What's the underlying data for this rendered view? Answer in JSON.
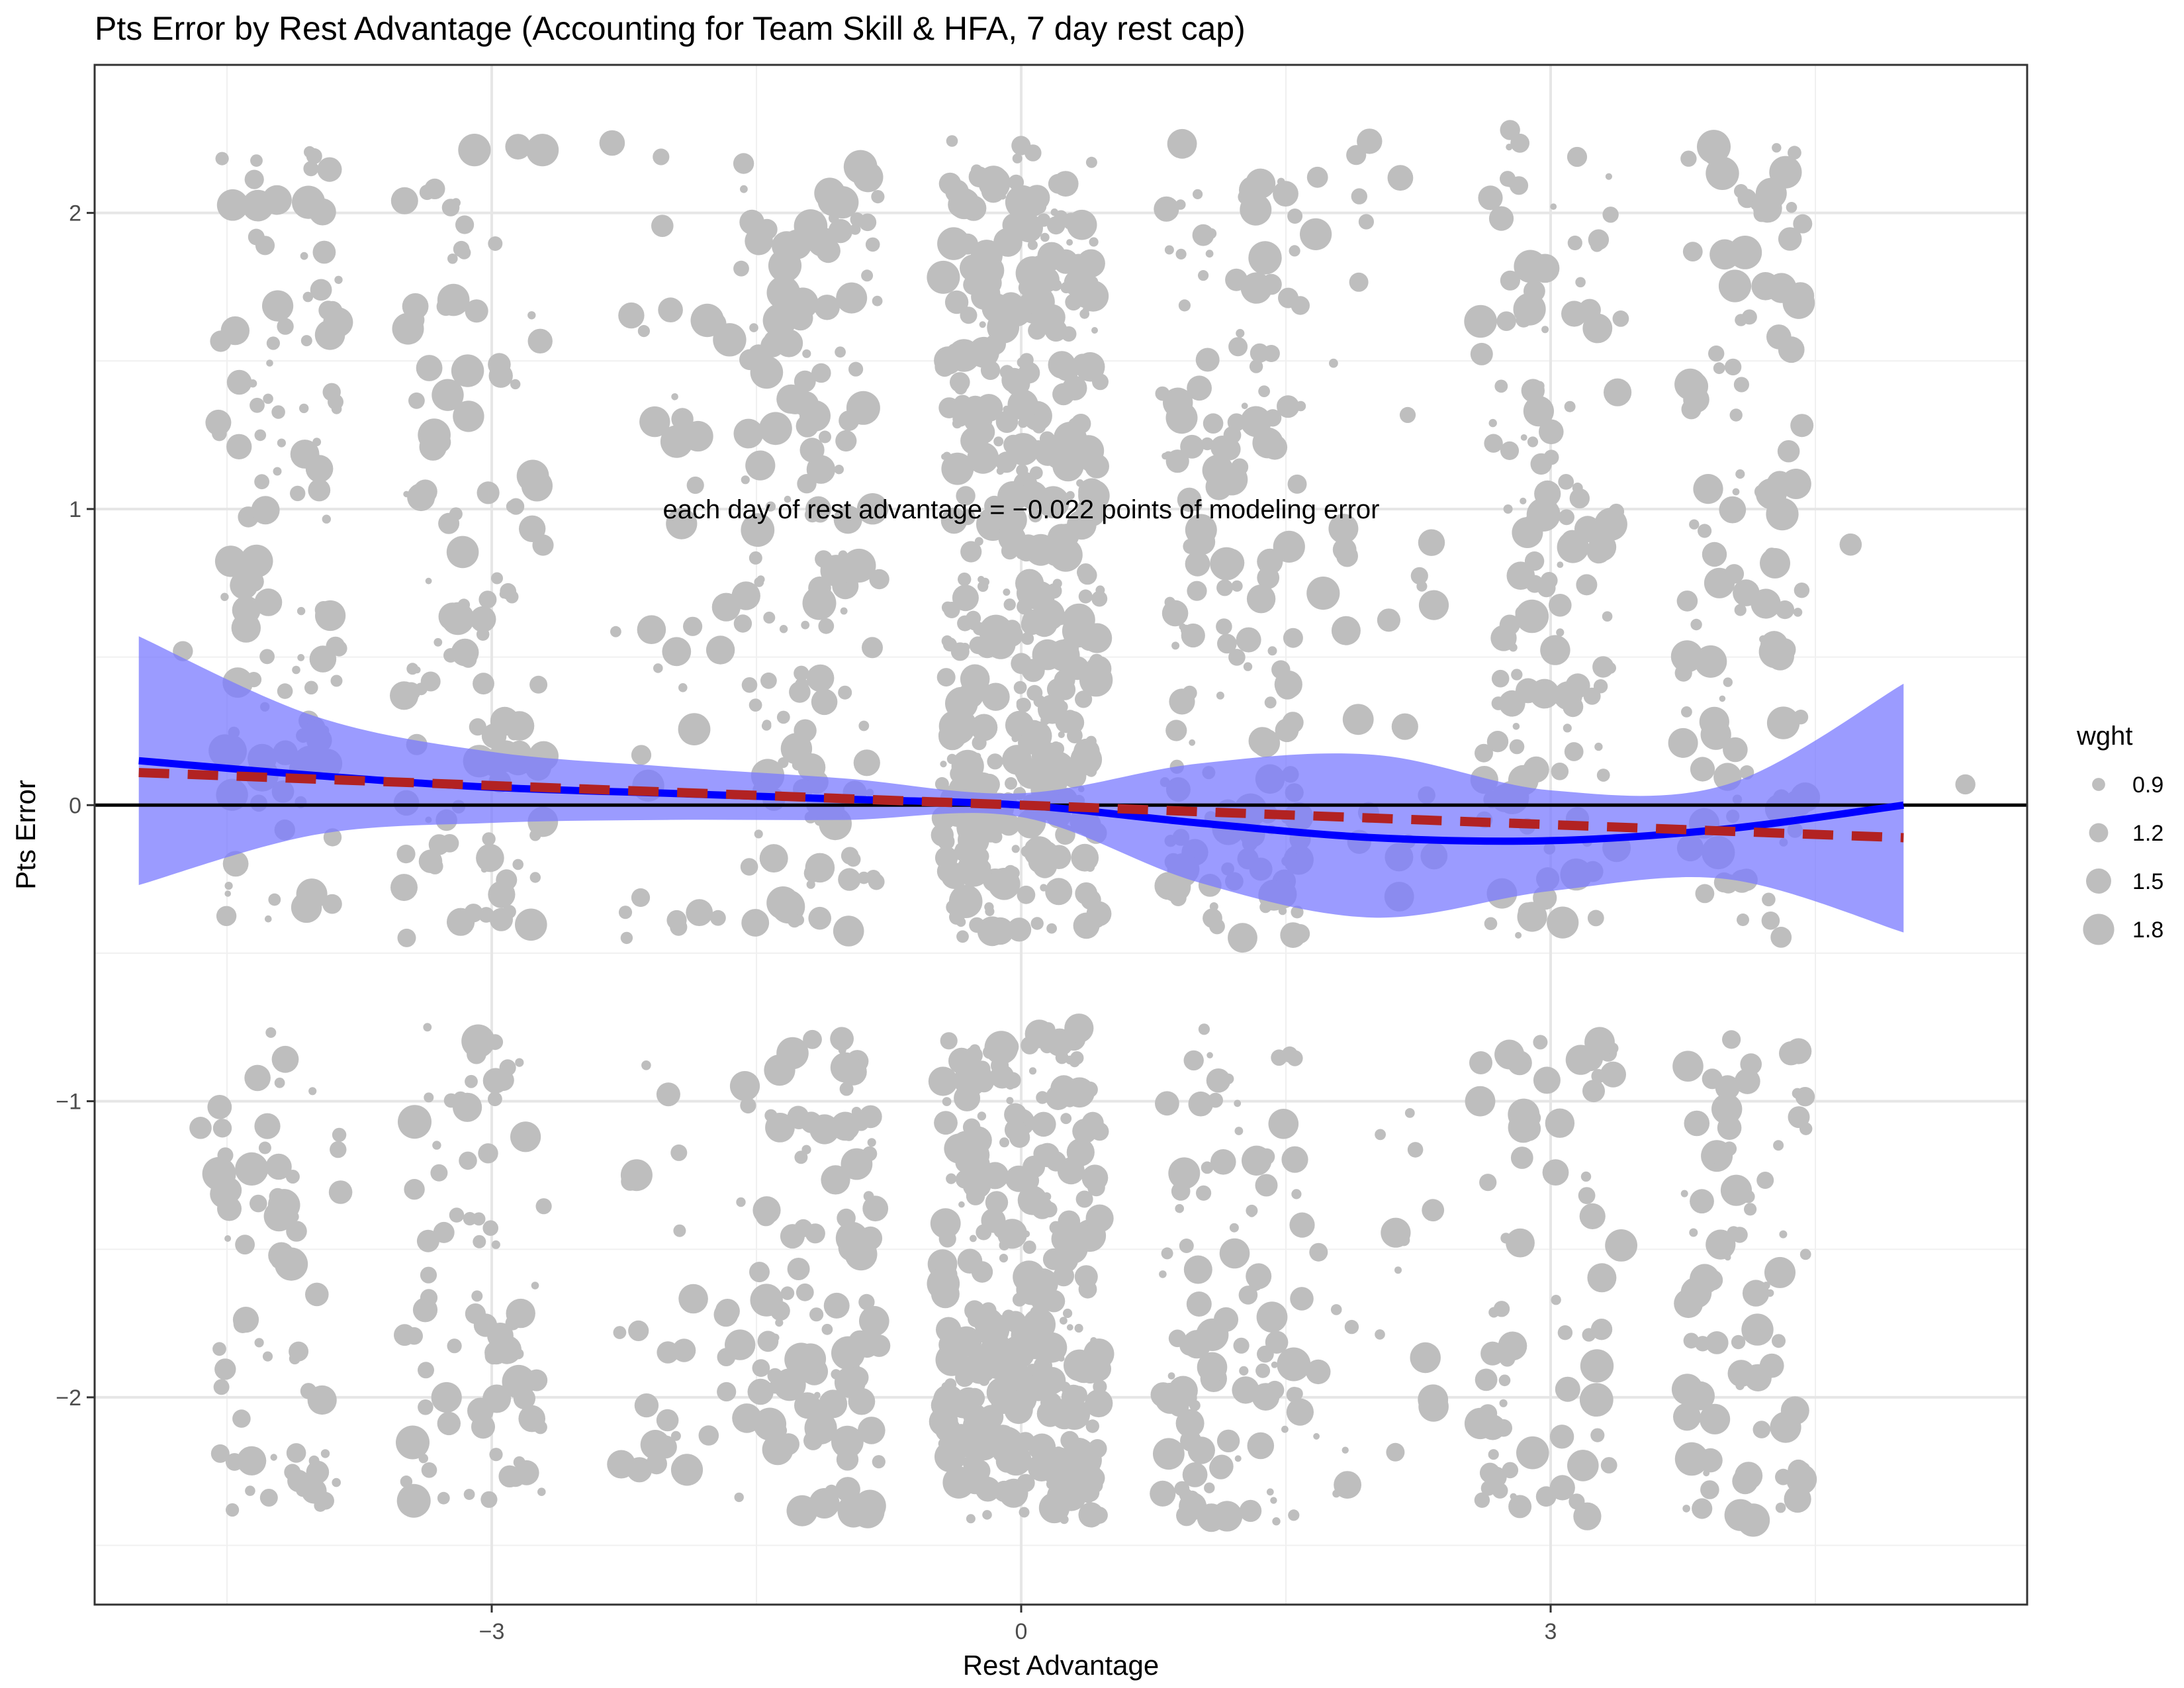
{
  "chart_data": {
    "type": "scatter",
    "title": "Pts Error by Rest Advantage (Accounting for Team Skill & HFA, 7 day rest cap)",
    "xlabel": "Rest Advantage",
    "ylabel": "Pts Error",
    "xlim": [
      -5.25,
      5.7
    ],
    "ylim": [
      -2.7,
      2.5
    ],
    "x_ticks": [
      -3,
      0,
      3
    ],
    "x_tick_labels": [
      "−3",
      "0",
      "3"
    ],
    "y_ticks": [
      -2,
      -1,
      0,
      1,
      2
    ],
    "y_tick_labels": [
      "−2",
      "−1",
      "0",
      "1",
      "2"
    ],
    "grid": true,
    "annotation": "each day of rest advantage = −0.022 points of modeling error",
    "annotation_pos": [
      0,
      1
    ],
    "legend": {
      "title": "wght",
      "placement": "right",
      "sizes": [
        0.9,
        1.2,
        1.5,
        1.8
      ],
      "labels": [
        "0.9",
        "1.2",
        "1.5",
        "1.8"
      ]
    },
    "point_color": "#bebebe",
    "reference_line_y": 0,
    "loess_fit": {
      "color": "#0000ff",
      "band_color": "#7a7aff",
      "x": [
        -5,
        -4,
        -3,
        -2,
        -1,
        0,
        1,
        2,
        3,
        4,
        5
      ],
      "y": [
        0.15,
        0.1,
        0.06,
        0.04,
        0.02,
        0.0,
        -0.06,
        -0.11,
        -0.12,
        -0.08,
        0.0
      ],
      "lower": [
        -0.27,
        -0.1,
        -0.06,
        -0.05,
        -0.05,
        -0.04,
        -0.26,
        -0.38,
        -0.29,
        -0.25,
        -0.43
      ],
      "upper": [
        0.57,
        0.3,
        0.18,
        0.13,
        0.09,
        0.04,
        0.14,
        0.17,
        0.05,
        0.07,
        0.41
      ]
    },
    "linear_fit": {
      "color": "#b22222",
      "slope": -0.022,
      "x": [
        -5,
        5
      ],
      "y": [
        0.11,
        -0.11
      ]
    },
    "point_clusters": [
      {
        "x": -4.2,
        "spread": 0.35,
        "n": 180
      },
      {
        "x": -3.1,
        "spread": 0.4,
        "n": 190
      },
      {
        "x": -2.0,
        "spread": 0.35,
        "n": 60
      },
      {
        "x": -1.2,
        "spread": 0.4,
        "n": 260
      },
      {
        "x": 0,
        "spread": 0.45,
        "n": 720
      },
      {
        "x": 1.2,
        "spread": 0.4,
        "n": 260
      },
      {
        "x": 2.0,
        "spread": 0.35,
        "n": 50
      },
      {
        "x": 3.0,
        "spread": 0.4,
        "n": 200
      },
      {
        "x": 4.1,
        "spread": 0.35,
        "n": 190
      }
    ],
    "outliers": [
      {
        "x": -4.75,
        "y": 0.52,
        "w": 1.2
      },
      {
        "x": -4.65,
        "y": -1.09,
        "w": 1.3
      },
      {
        "x": 5.35,
        "y": 0.07,
        "w": 1.2
      },
      {
        "x": 4.7,
        "y": 0.88,
        "w": 1.3
      },
      {
        "x": 2.77,
        "y": 2.28,
        "w": 1.2
      }
    ]
  }
}
